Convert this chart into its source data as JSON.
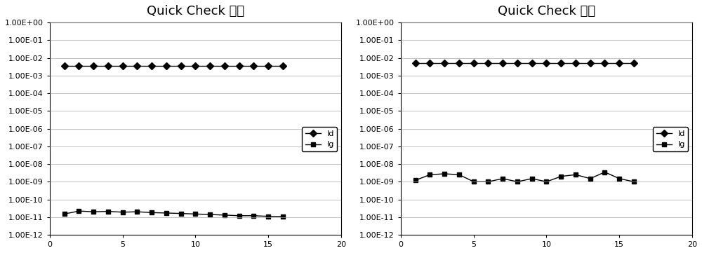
{
  "left_title": "Quick Check 正常",
  "right_title": "Quick Check 共振",
  "xlim": [
    0,
    20
  ],
  "xticks": [
    0,
    5,
    10,
    15,
    20
  ],
  "ylim_log": [
    1e-12,
    1.0
  ],
  "ytick_labels": [
    "1.00E-12",
    "1.00E-11",
    "1.00E-10",
    "1.00E-09",
    "1.00E-08",
    "1.00E-07",
    "1.00E-06",
    "1.00E-05",
    "1.00E-04",
    "1.00E-03",
    "1.00E-02",
    "1.00E-01",
    "1.00E+00"
  ],
  "ytick_values": [
    1e-12,
    1e-11,
    1e-10,
    1e-09,
    1e-08,
    1e-07,
    1e-06,
    1e-05,
    0.0001,
    0.001,
    0.01,
    0.1,
    1.0
  ],
  "left_Id": [
    0.0035,
    0.0035,
    0.0035,
    0.0035,
    0.0035,
    0.0035,
    0.0035,
    0.0035,
    0.0035,
    0.0035,
    0.0035,
    0.0035,
    0.0035,
    0.0035,
    0.0035,
    0.0035
  ],
  "left_Ig": [
    1.5e-11,
    2.2e-11,
    2e-11,
    2.1e-11,
    1.9e-11,
    2e-11,
    1.8e-11,
    1.7e-11,
    1.6e-11,
    1.5e-11,
    1.4e-11,
    1.3e-11,
    1.2e-11,
    1.2e-11,
    1.1e-11,
    1.1e-11
  ],
  "left_x": [
    1,
    2,
    3,
    4,
    5,
    6,
    7,
    8,
    9,
    10,
    11,
    12,
    13,
    14,
    15,
    16
  ],
  "right_Id": [
    0.005,
    0.005,
    0.005,
    0.005,
    0.005,
    0.005,
    0.005,
    0.005,
    0.005,
    0.005,
    0.005,
    0.005,
    0.005,
    0.005,
    0.005,
    0.005
  ],
  "right_Ig": [
    1.2e-09,
    2.5e-09,
    2.8e-09,
    2.5e-09,
    1e-09,
    1e-09,
    1.5e-09,
    1e-09,
    1.5e-09,
    1e-09,
    2e-09,
    2.5e-09,
    1.5e-09,
    3.5e-09,
    1.5e-09,
    1e-09
  ],
  "right_x": [
    1,
    2,
    3,
    4,
    5,
    6,
    7,
    8,
    9,
    10,
    11,
    12,
    13,
    14,
    15,
    16
  ],
  "line_color": "#000000",
  "marker_Id": "D",
  "marker_Ig": "s",
  "markersize_Id": 5,
  "markersize_Ig": 5,
  "legend_Id": "Id",
  "legend_Ig": "Ig",
  "bg_color": "#ffffff",
  "grid_color": "#aaaaaa",
  "title_fontsize": 13,
  "tick_fontsize": 8,
  "legend_fontsize": 8
}
